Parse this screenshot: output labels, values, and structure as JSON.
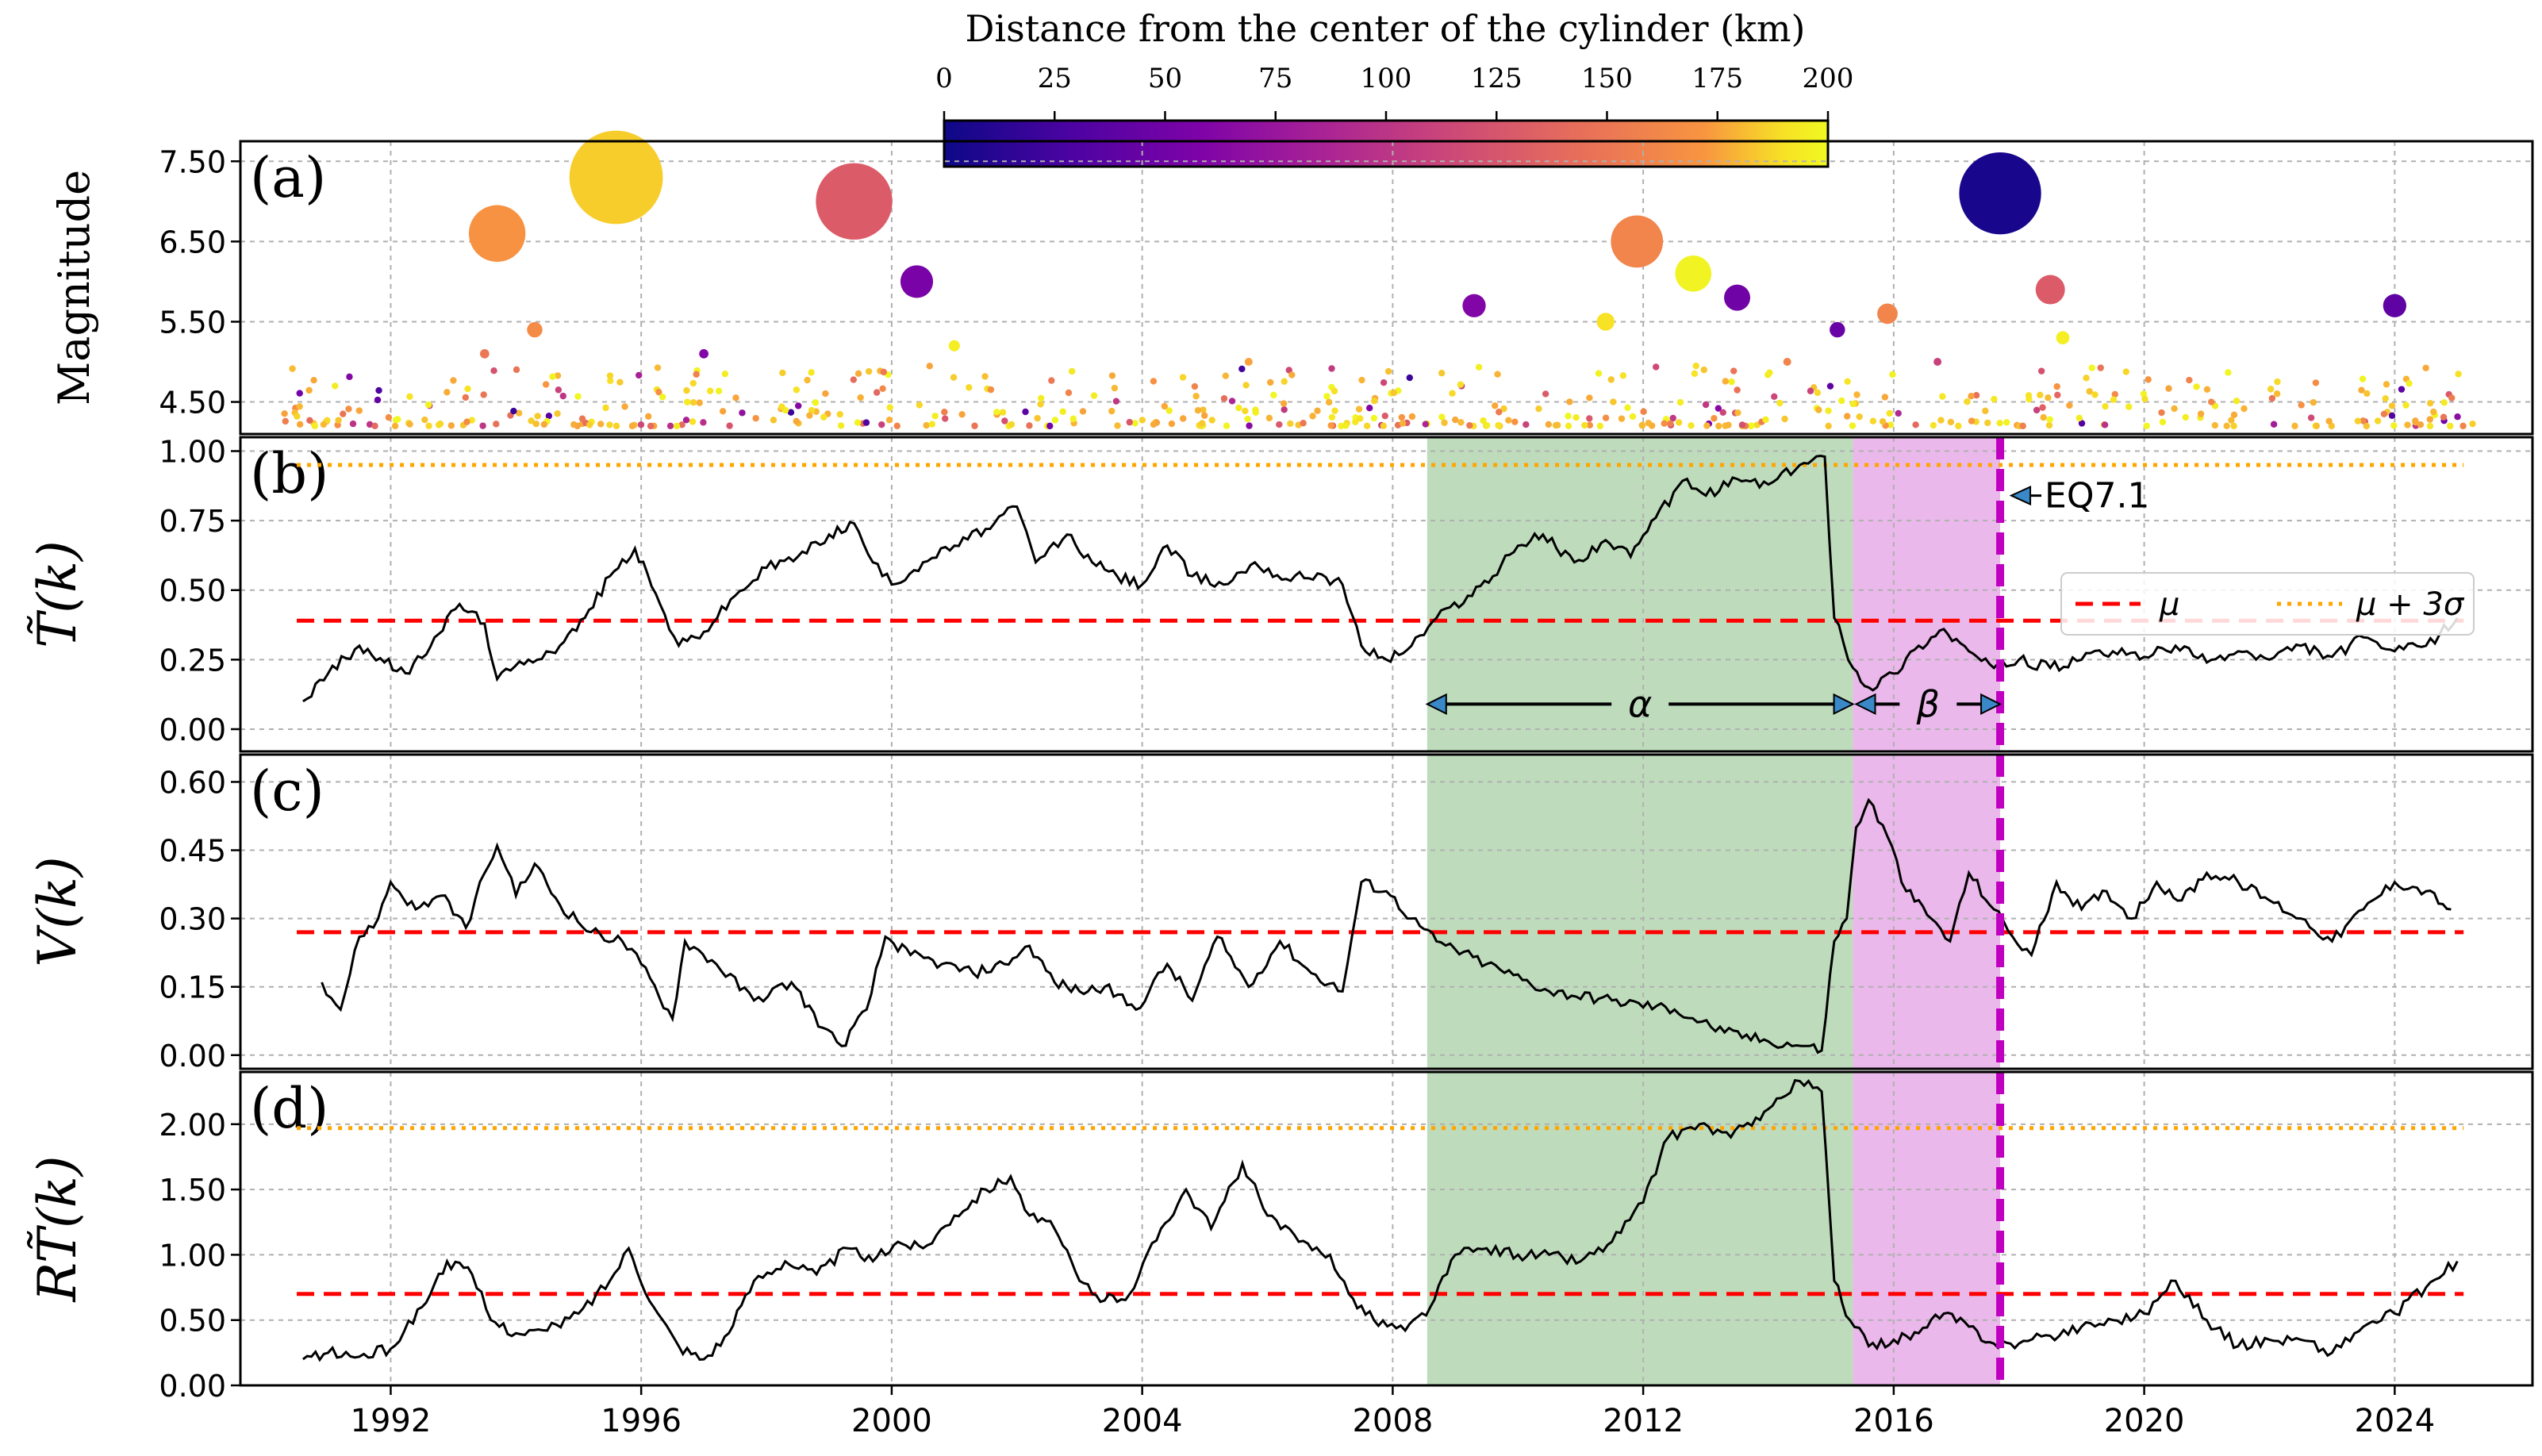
{
  "colorbar": {
    "label": "Distance from the center of the cylinder (km)",
    "ticks": [
      0,
      25,
      50,
      75,
      100,
      125,
      150,
      175,
      200
    ],
    "range": [
      0,
      200
    ],
    "cmap": "plasma"
  },
  "xaxis": {
    "range": [
      1989.6,
      2026.2
    ],
    "ticks": [
      1992,
      1996,
      2000,
      2004,
      2008,
      2012,
      2016,
      2020,
      2024
    ]
  },
  "shading": {
    "alpha": {
      "start": 2008.55,
      "end": 2015.35,
      "color": "#bedcbc"
    },
    "beta": {
      "start": 2015.35,
      "end": 2017.7,
      "color": "#ebb8eb"
    }
  },
  "eq_line": {
    "x": 2017.7,
    "color": "#c000c0",
    "label": "EQ7.1"
  },
  "legend": {
    "mu": "μ",
    "mu3s": "μ + 3σ"
  },
  "interval_labels": {
    "alpha": "α",
    "beta": "β"
  },
  "chart_data": [
    {
      "panel_label": "(a)",
      "type": "scatter",
      "ylabel": "Magnitude",
      "ylim": [
        4.1,
        7.75
      ],
      "yticks": [
        "4.50",
        "5.50",
        "6.50",
        "7.50"
      ],
      "grid": true,
      "large_events": [
        {
          "x": 1993.7,
          "y": 6.6,
          "dist": 170
        },
        {
          "x": 1995.6,
          "y": 7.3,
          "dist": 185
        },
        {
          "x": 1999.4,
          "y": 7.0,
          "dist": 130
        },
        {
          "x": 2000.4,
          "y": 6.0,
          "dist": 55
        },
        {
          "x": 2001.0,
          "y": 5.2,
          "dist": 195
        },
        {
          "x": 2009.3,
          "y": 5.7,
          "dist": 60
        },
        {
          "x": 2011.4,
          "y": 5.5,
          "dist": 190
        },
        {
          "x": 2011.9,
          "y": 6.5,
          "dist": 160
        },
        {
          "x": 2012.8,
          "y": 6.1,
          "dist": 198
        },
        {
          "x": 2013.5,
          "y": 5.8,
          "dist": 50
        },
        {
          "x": 2015.1,
          "y": 5.4,
          "dist": 45
        },
        {
          "x": 2015.9,
          "y": 5.6,
          "dist": 160
        },
        {
          "x": 2017.7,
          "y": 7.1,
          "dist": 5
        },
        {
          "x": 2018.5,
          "y": 5.9,
          "dist": 130
        },
        {
          "x": 2018.7,
          "y": 5.3,
          "dist": 195
        },
        {
          "x": 2024.0,
          "y": 5.7,
          "dist": 40
        },
        {
          "x": 1993.5,
          "y": 5.1,
          "dist": 150
        },
        {
          "x": 1994.3,
          "y": 5.4,
          "dist": 165
        },
        {
          "x": 1997.0,
          "y": 5.1,
          "dist": 60
        },
        {
          "x": 2005.7,
          "y": 5.0,
          "dist": 175
        },
        {
          "x": 2014.3,
          "y": 5.0,
          "dist": 160
        },
        {
          "x": 2016.7,
          "y": 5.0,
          "dist": 110
        }
      ],
      "small_events_note": "dense band of M4.2–5.0 events across 1990–2025",
      "small_events_seed": 7
    },
    {
      "panel_label": "(b)",
      "type": "line",
      "ylabel": "T̃(k)",
      "ylim": [
        -0.08,
        1.05
      ],
      "yticks": [
        "0.00",
        "0.25",
        "0.50",
        "0.75",
        "1.00"
      ],
      "mu": 0.39,
      "mu_plus_3sigma": 0.95,
      "series": [
        [
          1990.6,
          0.1
        ],
        [
          1991.0,
          0.2
        ],
        [
          1991.5,
          0.3
        ],
        [
          1991.9,
          0.24
        ],
        [
          1992.3,
          0.2
        ],
        [
          1992.7,
          0.33
        ],
        [
          1993.1,
          0.45
        ],
        [
          1993.5,
          0.38
        ],
        [
          1993.7,
          0.18
        ],
        [
          1994.2,
          0.25
        ],
        [
          1994.7,
          0.3
        ],
        [
          1995.1,
          0.4
        ],
        [
          1995.5,
          0.55
        ],
        [
          1995.9,
          0.65
        ],
        [
          1996.3,
          0.45
        ],
        [
          1996.6,
          0.3
        ],
        [
          1997.0,
          0.35
        ],
        [
          1997.5,
          0.48
        ],
        [
          1998.0,
          0.58
        ],
        [
          1998.5,
          0.62
        ],
        [
          1999.0,
          0.7
        ],
        [
          1999.4,
          0.74
        ],
        [
          1999.7,
          0.6
        ],
        [
          2000.0,
          0.52
        ],
        [
          2000.5,
          0.6
        ],
        [
          2001.0,
          0.66
        ],
        [
          2001.5,
          0.72
        ],
        [
          2002.0,
          0.8
        ],
        [
          2002.3,
          0.6
        ],
        [
          2002.8,
          0.7
        ],
        [
          2003.2,
          0.6
        ],
        [
          2003.6,
          0.55
        ],
        [
          2004.0,
          0.52
        ],
        [
          2004.4,
          0.66
        ],
        [
          2004.8,
          0.55
        ],
        [
          2005.3,
          0.52
        ],
        [
          2005.8,
          0.6
        ],
        [
          2006.3,
          0.54
        ],
        [
          2006.8,
          0.56
        ],
        [
          2007.2,
          0.52
        ],
        [
          2007.5,
          0.3
        ],
        [
          2007.9,
          0.25
        ],
        [
          2008.3,
          0.3
        ],
        [
          2008.7,
          0.4
        ],
        [
          2009.2,
          0.48
        ],
        [
          2009.6,
          0.55
        ],
        [
          2010.0,
          0.66
        ],
        [
          2010.4,
          0.7
        ],
        [
          2010.9,
          0.6
        ],
        [
          2011.4,
          0.68
        ],
        [
          2011.8,
          0.62
        ],
        [
          2012.2,
          0.76
        ],
        [
          2012.7,
          0.9
        ],
        [
          2013.0,
          0.84
        ],
        [
          2013.5,
          0.9
        ],
        [
          2014.0,
          0.88
        ],
        [
          2014.5,
          0.95
        ],
        [
          2014.9,
          0.98
        ],
        [
          2015.05,
          0.4
        ],
        [
          2015.35,
          0.22
        ],
        [
          2015.6,
          0.15
        ],
        [
          2016.0,
          0.2
        ],
        [
          2016.4,
          0.3
        ],
        [
          2016.8,
          0.36
        ],
        [
          2017.2,
          0.28
        ],
        [
          2017.6,
          0.22
        ],
        [
          2018.0,
          0.25
        ],
        [
          2018.5,
          0.22
        ],
        [
          2019.0,
          0.25
        ],
        [
          2019.5,
          0.28
        ],
        [
          2020.0,
          0.26
        ],
        [
          2020.5,
          0.3
        ],
        [
          2021.0,
          0.24
        ],
        [
          2021.5,
          0.28
        ],
        [
          2022.0,
          0.25
        ],
        [
          2022.5,
          0.3
        ],
        [
          2023.0,
          0.26
        ],
        [
          2023.5,
          0.33
        ],
        [
          2024.0,
          0.28
        ],
        [
          2024.5,
          0.3
        ],
        [
          2025.0,
          0.4
        ]
      ]
    },
    {
      "panel_label": "(c)",
      "type": "line",
      "ylabel": "V(k)",
      "ylim": [
        -0.03,
        0.66
      ],
      "yticks": [
        "0.00",
        "0.15",
        "0.30",
        "0.45",
        "0.60"
      ],
      "mu": 0.27,
      "series": [
        [
          1990.9,
          0.16
        ],
        [
          1991.2,
          0.1
        ],
        [
          1991.5,
          0.26
        ],
        [
          1991.8,
          0.3
        ],
        [
          1992.0,
          0.38
        ],
        [
          1992.4,
          0.32
        ],
        [
          1992.8,
          0.35
        ],
        [
          1993.2,
          0.28
        ],
        [
          1993.5,
          0.4
        ],
        [
          1993.7,
          0.46
        ],
        [
          1994.0,
          0.35
        ],
        [
          1994.3,
          0.42
        ],
        [
          1994.7,
          0.33
        ],
        [
          1995.2,
          0.27
        ],
        [
          1995.7,
          0.25
        ],
        [
          1996.0,
          0.2
        ],
        [
          1996.5,
          0.08
        ],
        [
          1996.7,
          0.25
        ],
        [
          1997.2,
          0.2
        ],
        [
          1997.8,
          0.12
        ],
        [
          1998.4,
          0.16
        ],
        [
          1998.9,
          0.06
        ],
        [
          1999.2,
          0.02
        ],
        [
          1999.6,
          0.1
        ],
        [
          1999.9,
          0.26
        ],
        [
          2000.3,
          0.22
        ],
        [
          2000.8,
          0.2
        ],
        [
          2001.3,
          0.18
        ],
        [
          2001.8,
          0.2
        ],
        [
          2002.2,
          0.24
        ],
        [
          2002.6,
          0.16
        ],
        [
          2003.0,
          0.14
        ],
        [
          2003.4,
          0.15
        ],
        [
          2003.9,
          0.1
        ],
        [
          2004.4,
          0.2
        ],
        [
          2004.8,
          0.12
        ],
        [
          2005.2,
          0.26
        ],
        [
          2005.7,
          0.15
        ],
        [
          2006.2,
          0.25
        ],
        [
          2006.7,
          0.18
        ],
        [
          2007.2,
          0.14
        ],
        [
          2007.5,
          0.38
        ],
        [
          2007.9,
          0.36
        ],
        [
          2008.3,
          0.3
        ],
        [
          2008.7,
          0.25
        ],
        [
          2009.5,
          0.2
        ],
        [
          2010.5,
          0.14
        ],
        [
          2011.5,
          0.12
        ],
        [
          2012.5,
          0.1
        ],
        [
          2013.3,
          0.05
        ],
        [
          2014.0,
          0.03
        ],
        [
          2014.6,
          0.02
        ],
        [
          2014.85,
          0.01
        ],
        [
          2015.05,
          0.25
        ],
        [
          2015.25,
          0.3
        ],
        [
          2015.4,
          0.5
        ],
        [
          2015.6,
          0.56
        ],
        [
          2015.9,
          0.48
        ],
        [
          2016.2,
          0.36
        ],
        [
          2016.6,
          0.3
        ],
        [
          2016.9,
          0.25
        ],
        [
          2017.2,
          0.4
        ],
        [
          2017.6,
          0.32
        ],
        [
          2017.9,
          0.26
        ],
        [
          2018.2,
          0.22
        ],
        [
          2018.6,
          0.38
        ],
        [
          2019.0,
          0.32
        ],
        [
          2019.4,
          0.36
        ],
        [
          2019.8,
          0.3
        ],
        [
          2020.2,
          0.38
        ],
        [
          2020.6,
          0.34
        ],
        [
          2021.0,
          0.4
        ],
        [
          2021.5,
          0.38
        ],
        [
          2022.0,
          0.34
        ],
        [
          2022.5,
          0.3
        ],
        [
          2023.0,
          0.25
        ],
        [
          2023.5,
          0.32
        ],
        [
          2024.0,
          0.38
        ],
        [
          2024.5,
          0.36
        ],
        [
          2024.9,
          0.32
        ]
      ]
    },
    {
      "panel_label": "(d)",
      "type": "line",
      "ylabel": "RT̃(k)",
      "ylim": [
        0.0,
        2.4
      ],
      "yticks": [
        "0.00",
        "0.50",
        "1.00",
        "1.50",
        "2.00"
      ],
      "mu": 0.7,
      "mu_plus_3sigma": 1.97,
      "series": [
        [
          1990.6,
          0.2
        ],
        [
          1991.0,
          0.25
        ],
        [
          1991.5,
          0.22
        ],
        [
          1992.0,
          0.28
        ],
        [
          1992.5,
          0.6
        ],
        [
          1992.9,
          0.95
        ],
        [
          1993.3,
          0.85
        ],
        [
          1993.6,
          0.5
        ],
        [
          1994.0,
          0.4
        ],
        [
          1994.5,
          0.42
        ],
        [
          1995.0,
          0.55
        ],
        [
          1995.5,
          0.8
        ],
        [
          1995.8,
          1.05
        ],
        [
          1996.2,
          0.6
        ],
        [
          1996.6,
          0.3
        ],
        [
          1997.0,
          0.2
        ],
        [
          1997.4,
          0.4
        ],
        [
          1997.8,
          0.8
        ],
        [
          1998.3,
          0.95
        ],
        [
          1998.8,
          0.85
        ],
        [
          1999.3,
          1.05
        ],
        [
          1999.7,
          0.95
        ],
        [
          2000.1,
          1.1
        ],
        [
          2000.5,
          1.05
        ],
        [
          2001.0,
          1.3
        ],
        [
          2001.5,
          1.5
        ],
        [
          2001.9,
          1.6
        ],
        [
          2002.2,
          1.3
        ],
        [
          2002.6,
          1.2
        ],
        [
          2003.0,
          0.8
        ],
        [
          2003.4,
          0.65
        ],
        [
          2003.8,
          0.7
        ],
        [
          2004.3,
          1.2
        ],
        [
          2004.7,
          1.5
        ],
        [
          2005.1,
          1.2
        ],
        [
          2005.6,
          1.7
        ],
        [
          2006.0,
          1.3
        ],
        [
          2006.5,
          1.1
        ],
        [
          2007.0,
          1.0
        ],
        [
          2007.3,
          0.7
        ],
        [
          2007.7,
          0.5
        ],
        [
          2008.2,
          0.42
        ],
        [
          2008.6,
          0.6
        ],
        [
          2009.0,
          1.0
        ],
        [
          2009.5,
          1.05
        ],
        [
          2010.0,
          1.0
        ],
        [
          2010.5,
          1.0
        ],
        [
          2011.0,
          0.95
        ],
        [
          2011.5,
          1.1
        ],
        [
          2012.0,
          1.4
        ],
        [
          2012.4,
          1.9
        ],
        [
          2012.9,
          2.0
        ],
        [
          2013.4,
          1.9
        ],
        [
          2013.8,
          2.05
        ],
        [
          2014.2,
          2.2
        ],
        [
          2014.5,
          2.33
        ],
        [
          2014.85,
          2.25
        ],
        [
          2015.05,
          0.8
        ],
        [
          2015.3,
          0.5
        ],
        [
          2015.6,
          0.3
        ],
        [
          2016.0,
          0.35
        ],
        [
          2016.4,
          0.4
        ],
        [
          2016.8,
          0.55
        ],
        [
          2017.2,
          0.45
        ],
        [
          2017.6,
          0.32
        ],
        [
          2018.0,
          0.32
        ],
        [
          2018.5,
          0.38
        ],
        [
          2019.0,
          0.45
        ],
        [
          2019.5,
          0.5
        ],
        [
          2020.0,
          0.55
        ],
        [
          2020.5,
          0.8
        ],
        [
          2021.0,
          0.5
        ],
        [
          2021.5,
          0.3
        ],
        [
          2022.0,
          0.35
        ],
        [
          2022.5,
          0.35
        ],
        [
          2023.0,
          0.25
        ],
        [
          2023.5,
          0.45
        ],
        [
          2024.0,
          0.55
        ],
        [
          2024.5,
          0.75
        ],
        [
          2025.0,
          0.95
        ]
      ]
    }
  ]
}
